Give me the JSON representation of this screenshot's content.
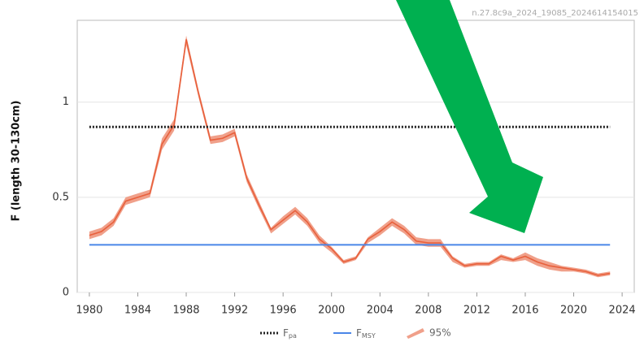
{
  "chart_data": {
    "type": "line",
    "watermark": "n.27.8c9a_2024_19085_2024614154015",
    "y_label": "F (length 30-130cm)",
    "xlim": [
      1979,
      2025
    ],
    "ylim": [
      0,
      1.43
    ],
    "xticks": [
      1980,
      1984,
      1988,
      1992,
      1996,
      2000,
      2004,
      2008,
      2012,
      2016,
      2020,
      2024
    ],
    "yticks": [
      0,
      0.5,
      1
    ],
    "grid": true,
    "x": [
      1980,
      1981,
      1982,
      1983,
      1984,
      1985,
      1986,
      1987,
      1988,
      1989,
      1990,
      1991,
      1992,
      1993,
      1994,
      1995,
      1996,
      1997,
      1998,
      1999,
      2000,
      2001,
      2002,
      2003,
      2004,
      2005,
      2006,
      2007,
      2008,
      2009,
      2010,
      2011,
      2012,
      2013,
      2014,
      2015,
      2016,
      2017,
      2018,
      2019,
      2020,
      2021,
      2022,
      2023
    ],
    "f_line": {
      "color": "#e8603c",
      "values": [
        0.3,
        0.32,
        0.37,
        0.48,
        0.5,
        0.52,
        0.78,
        0.88,
        1.33,
        1.05,
        0.8,
        0.81,
        0.84,
        0.6,
        0.46,
        0.33,
        0.38,
        0.43,
        0.37,
        0.28,
        0.23,
        0.16,
        0.18,
        0.28,
        0.32,
        0.37,
        0.33,
        0.27,
        0.26,
        0.26,
        0.18,
        0.14,
        0.15,
        0.15,
        0.19,
        0.17,
        0.19,
        0.16,
        0.14,
        0.13,
        0.12,
        0.11,
        0.09,
        0.1
      ]
    },
    "band": {
      "name": "95%",
      "color": "#f0a08a",
      "upper": [
        0.32,
        0.34,
        0.39,
        0.5,
        0.52,
        0.54,
        0.81,
        0.91,
        1.35,
        1.07,
        0.82,
        0.83,
        0.86,
        0.62,
        0.48,
        0.34,
        0.4,
        0.45,
        0.39,
        0.3,
        0.24,
        0.17,
        0.19,
        0.29,
        0.34,
        0.39,
        0.35,
        0.29,
        0.28,
        0.28,
        0.19,
        0.15,
        0.16,
        0.16,
        0.2,
        0.18,
        0.21,
        0.18,
        0.16,
        0.14,
        0.13,
        0.12,
        0.1,
        0.11
      ],
      "lower": [
        0.28,
        0.3,
        0.35,
        0.46,
        0.48,
        0.5,
        0.75,
        0.85,
        1.3,
        1.03,
        0.78,
        0.79,
        0.82,
        0.58,
        0.44,
        0.31,
        0.36,
        0.41,
        0.35,
        0.26,
        0.21,
        0.15,
        0.17,
        0.26,
        0.3,
        0.35,
        0.31,
        0.25,
        0.24,
        0.24,
        0.16,
        0.13,
        0.14,
        0.14,
        0.17,
        0.16,
        0.17,
        0.14,
        0.12,
        0.11,
        0.11,
        0.1,
        0.08,
        0.09
      ]
    },
    "series": [
      {
        "name": "F",
        "subscript": "pa",
        "color": "#222222",
        "style": "dotted",
        "x": [
          1980,
          2023
        ],
        "values": [
          0.87,
          0.87
        ]
      },
      {
        "name": "F",
        "subscript": "MSY",
        "color": "#4a86e8",
        "style": "solid",
        "x": [
          1980,
          2023
        ],
        "values": [
          0.25,
          0.25
        ]
      }
    ]
  }
}
